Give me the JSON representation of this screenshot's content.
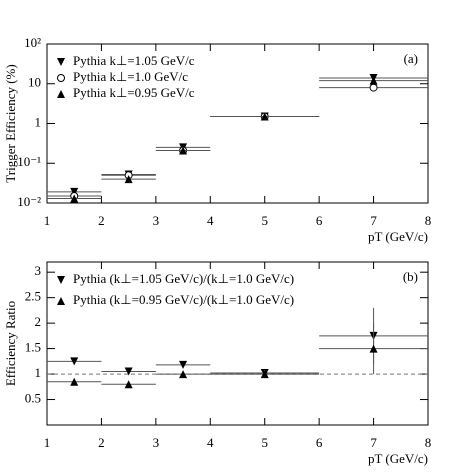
{
  "chart_data": [
    {
      "type": "scatter",
      "ylabel": "Trigger Efficiency (%)",
      "xlabel": "pT (GeV/c)",
      "annotation": "(a)",
      "xlim": [
        1,
        8
      ],
      "xticks": [
        1,
        2,
        3,
        4,
        5,
        6,
        7,
        8
      ],
      "ylog": true,
      "ylim": [
        0.01,
        100
      ],
      "yticks": [
        {
          "value": 0.01,
          "label": "10⁻²"
        },
        {
          "value": 0.1,
          "label": "10⁻¹"
        },
        1,
        10,
        {
          "value": 100,
          "label": "10²"
        }
      ],
      "legend": "upper left",
      "x": [
        1.5,
        2.5,
        3.5,
        5,
        7
      ],
      "x_halfwidth": [
        0.5,
        0.5,
        0.5,
        1,
        1
      ],
      "series": [
        {
          "name": "Pythia k⊥=1.05 GeV/c",
          "marker": "triangle-down",
          "color": "#000000",
          "values": [
            0.019,
            0.052,
            0.25,
            1.5,
            14
          ]
        },
        {
          "name": "Pythia k⊥=1.0 GeV/c",
          "marker": "circle-open",
          "color": "#000000",
          "values": [
            0.015,
            0.05,
            0.21,
            1.5,
            8
          ]
        },
        {
          "name": "Pythia k⊥=0.95 GeV/c",
          "marker": "triangle-up",
          "color": "#000000",
          "values": [
            0.013,
            0.04,
            0.21,
            1.5,
            12
          ]
        }
      ]
    },
    {
      "type": "scatter",
      "ylabel": "Efficiency Ratio",
      "xlabel": "pT (GeV/c)",
      "annotation": "(b)",
      "xlim": [
        1,
        8
      ],
      "xticks": [
        1,
        2,
        3,
        4,
        5,
        6,
        7,
        8
      ],
      "ylog": false,
      "ylim": [
        0,
        3.2
      ],
      "yticks": [
        0.5,
        1,
        1.5,
        2,
        2.5,
        3
      ],
      "reference_line": 1,
      "legend": "upper left",
      "x": [
        1.5,
        2.5,
        3.5,
        5,
        7
      ],
      "x_halfwidth": [
        0.5,
        0.5,
        0.5,
        1,
        1
      ],
      "series": [
        {
          "name": "Pythia (k⊥=1.05 GeV/c)/(k⊥=1.0 GeV/c)",
          "marker": "triangle-down",
          "color": "#000000",
          "values": [
            1.25,
            1.05,
            1.18,
            1.02,
            1.75
          ],
          "errors": [
            0.03,
            0.03,
            0.04,
            0.08,
            0.55
          ]
        },
        {
          "name": "Pythia (k⊥=0.95 GeV/c)/(k⊥=1.0 GeV/c)",
          "marker": "triangle-up",
          "color": "#000000",
          "values": [
            0.85,
            0.8,
            1.0,
            1.0,
            1.5
          ],
          "errors": [
            0.03,
            0.03,
            0.04,
            0.08,
            0.5
          ]
        }
      ]
    }
  ]
}
